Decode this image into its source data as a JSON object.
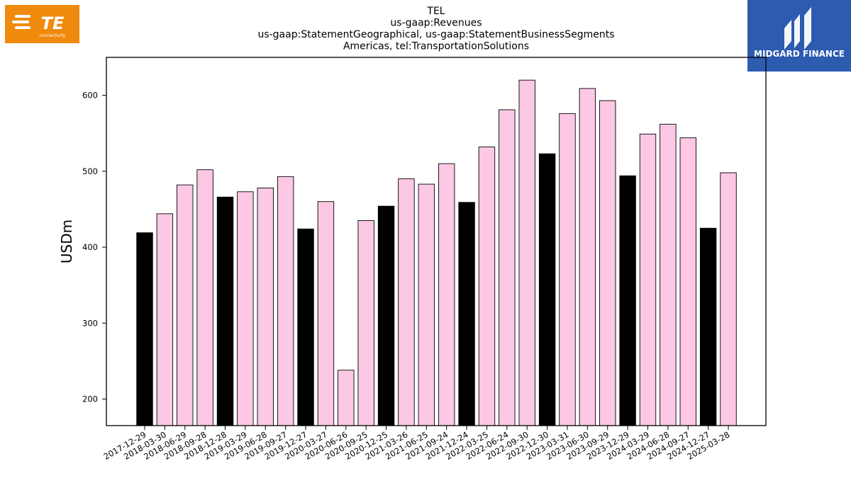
{
  "logos": {
    "left": {
      "text": "TE",
      "subtext": "connectivity",
      "color": "#ef8a0c"
    },
    "right": {
      "text": "MIDGARD FINANCE",
      "color": "#2c5bb0"
    }
  },
  "chart_data": {
    "type": "bar",
    "title": [
      "TEL",
      "us-gaap:Revenues",
      "us-gaap:StatementGeographical, us-gaap:StatementBusinessSegments",
      "Americas, tel:TransportationSolutions"
    ],
    "xlabel": "",
    "ylabel": "USDm",
    "ylim": [
      165,
      650
    ],
    "yticks": [
      200,
      300,
      400,
      500,
      600
    ],
    "grid": false,
    "colors": {
      "quarter": "#fcc8e4",
      "year_end": "#000000",
      "edge": "#000000"
    },
    "categories": [
      "2017-12-29",
      "2018-03-30",
      "2018-06-29",
      "2018-09-28",
      "2018-12-28",
      "2019-03-29",
      "2019-06-28",
      "2019-09-27",
      "2019-12-27",
      "2020-03-27",
      "2020-06-26",
      "2020-09-25",
      "2020-12-25",
      "2021-03-26",
      "2021-06-25",
      "2021-09-24",
      "2021-12-24",
      "2022-03-25",
      "2022-06-24",
      "2022-09-30",
      "2022-12-30",
      "2023-03-31",
      "2023-06-30",
      "2023-09-29",
      "2023-12-29",
      "2024-03-29",
      "2024-06-28",
      "2024-09-27",
      "2024-12-27",
      "2025-03-28"
    ],
    "values": [
      419,
      444,
      482,
      502,
      466,
      473,
      478,
      493,
      424,
      460,
      238,
      435,
      454,
      490,
      483,
      510,
      459,
      532,
      581,
      620,
      523,
      576,
      609,
      593,
      494,
      549,
      562,
      544,
      425,
      498
    ],
    "highlight": [
      true,
      false,
      false,
      false,
      true,
      false,
      false,
      false,
      true,
      false,
      false,
      false,
      true,
      false,
      false,
      false,
      true,
      false,
      false,
      false,
      true,
      false,
      false,
      false,
      true,
      false,
      false,
      false,
      true,
      false
    ]
  }
}
